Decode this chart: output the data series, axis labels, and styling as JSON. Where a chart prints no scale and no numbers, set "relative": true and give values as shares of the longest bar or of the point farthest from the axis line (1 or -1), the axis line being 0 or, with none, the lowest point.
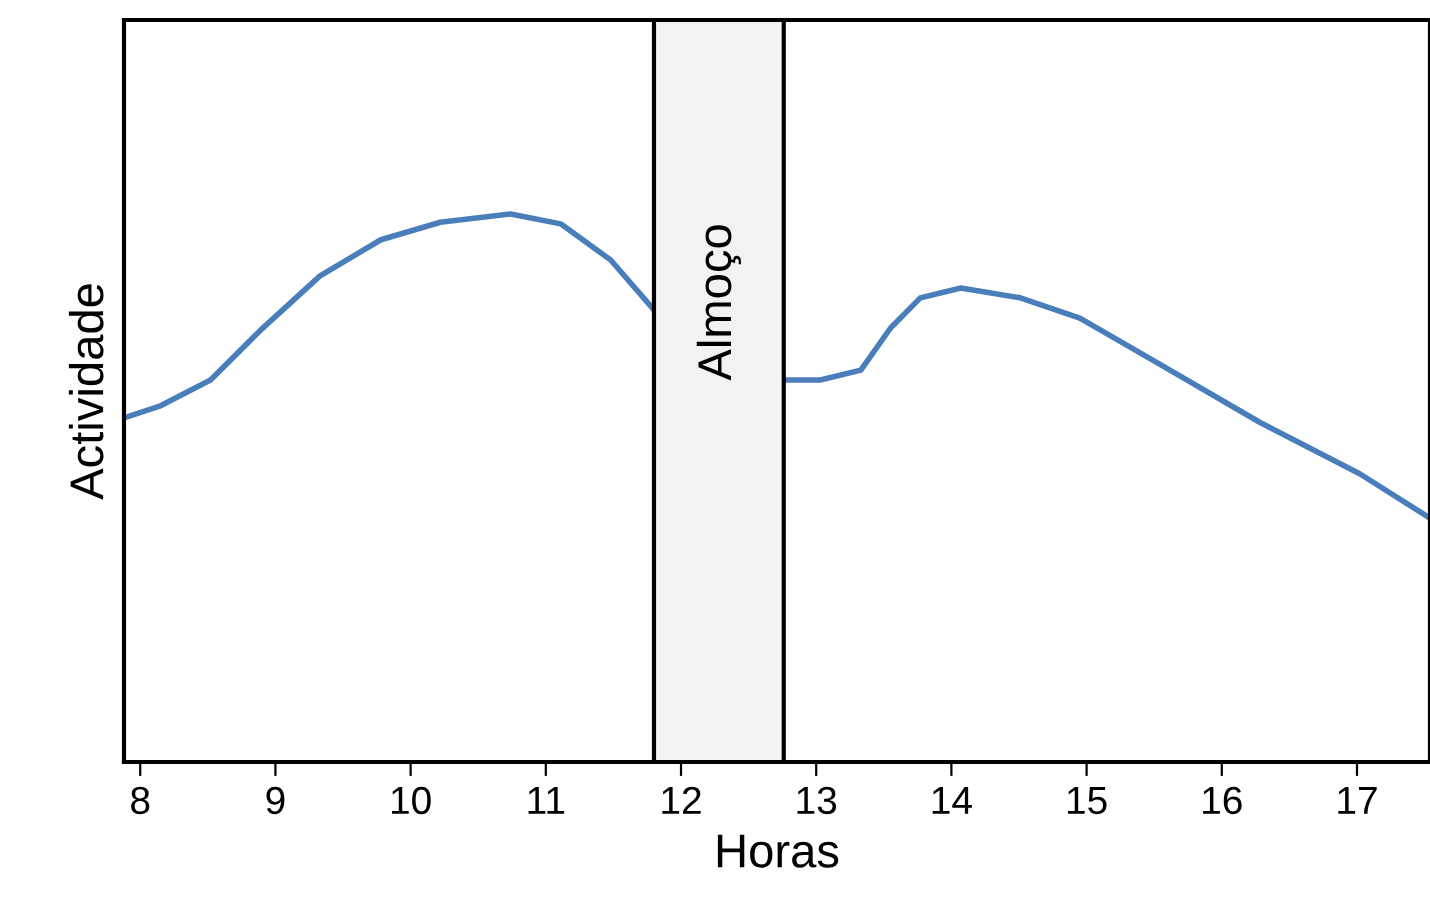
{
  "chart_data": {
    "type": "line",
    "xlabel": "Horas",
    "ylabel": "Actividade",
    "relative": true,
    "xlim": [
      7.88,
      17.54
    ],
    "xticks": [
      8,
      9,
      10,
      11,
      12,
      13,
      14,
      15,
      16,
      17
    ],
    "grid": false,
    "legend": false,
    "marker": "none",
    "line_style": "solid",
    "series": [
      {
        "color": "#4a7ebb",
        "x": [
          7.88,
          8.15,
          8.52,
          8.89,
          9.33,
          9.78,
          10.22,
          10.74,
          11.11,
          11.48,
          11.8,
          12.3,
          12.76,
          13.03,
          13.33,
          13.55,
          13.77,
          14.07,
          14.51,
          14.95,
          15.54,
          16.28,
          17.02,
          17.54
        ],
        "values": [
          0.628,
          0.65,
          0.697,
          0.788,
          0.887,
          0.953,
          0.985,
          1.0,
          0.982,
          0.916,
          0.825,
          null,
          0.697,
          0.697,
          0.715,
          0.792,
          0.847,
          0.865,
          0.847,
          0.81,
          0.726,
          0.62,
          0.526,
          0.445
        ]
      }
    ],
    "bands": [
      {
        "axis": "x",
        "from": 11.8,
        "to": 12.76,
        "label": "Almoço",
        "color": "#f2f2f2"
      }
    ]
  }
}
